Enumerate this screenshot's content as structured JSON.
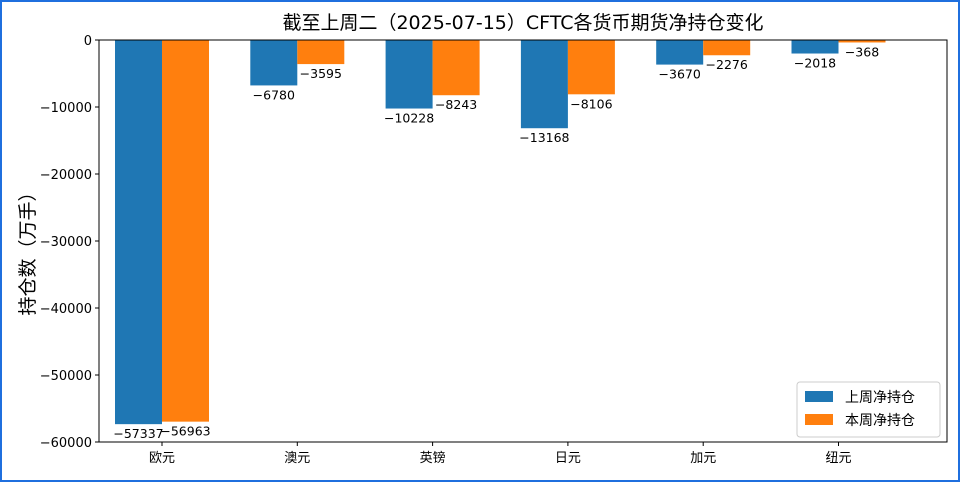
{
  "chart_data": {
    "type": "bar",
    "title": "截至上周二（2025-07-15）CFTC各货币期货净持仓变化",
    "ylabel": "持仓数（万手）",
    "xlabel": "",
    "categories": [
      "欧元",
      "澳元",
      "英镑",
      "日元",
      "加元",
      "纽元"
    ],
    "series": [
      {
        "name": "上周净持仓",
        "values": [
          -57337,
          -6780,
          -10228,
          -13168,
          -3670,
          -2018
        ],
        "color": "#1f77b4"
      },
      {
        "name": "本周净持仓",
        "values": [
          -56963,
          -3595,
          -8243,
          -8106,
          -2276,
          -368
        ],
        "color": "#ff7f0e"
      }
    ],
    "ylim": [
      -60000,
      0
    ],
    "yticks": [
      0,
      -10000,
      -20000,
      -30000,
      -40000,
      -50000,
      -60000
    ],
    "grid": false,
    "legend": "lower-right"
  }
}
